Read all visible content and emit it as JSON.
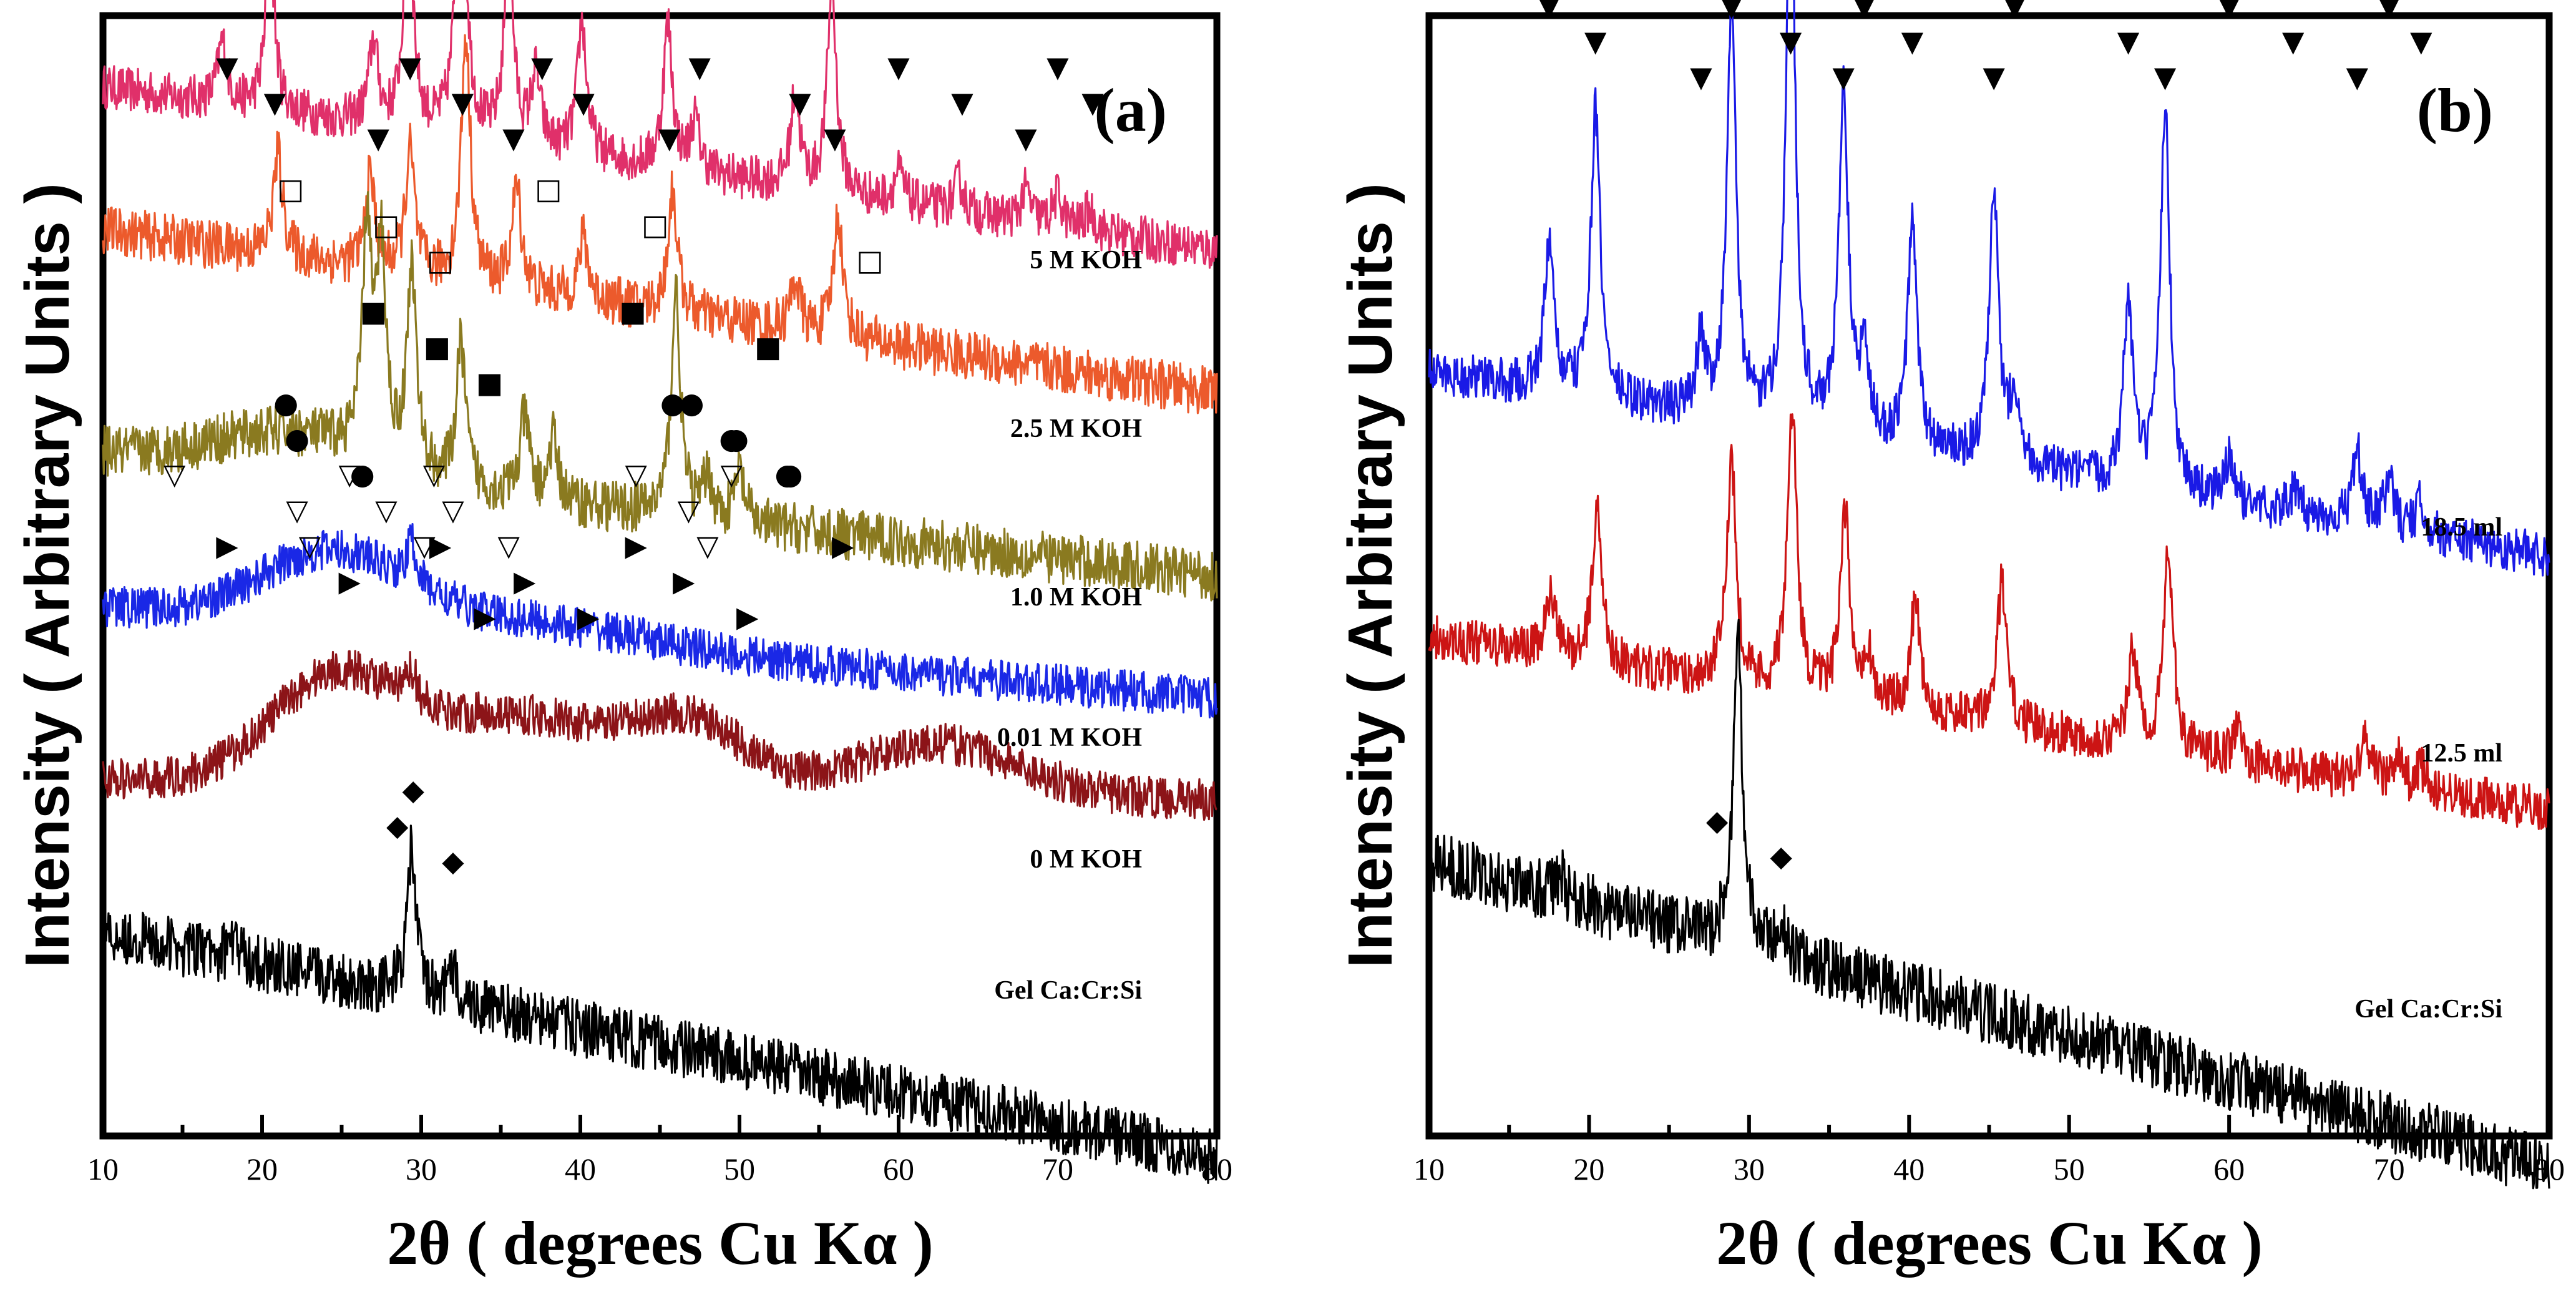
{
  "chart_data": [
    {
      "panel": "(a)",
      "type": "line",
      "xlabel": "2θ ( degrees Cu Kα )",
      "ylabel": "Intensity ( Arbitrary Units )",
      "xlim": [
        10,
        80
      ],
      "xticks": [
        10,
        20,
        30,
        40,
        50,
        60,
        70,
        80
      ],
      "yticks": false,
      "series": [
        {
          "name": "5 M KOH",
          "color": "#e0306a",
          "baseline": 0.88,
          "end": 0.72,
          "noise": 0.022,
          "hump": [],
          "peaks": [
            [
              17.5,
              0.06
            ],
            [
              20.5,
              0.16
            ],
            [
              27,
              0.08
            ],
            [
              29.2,
              0.22
            ],
            [
              32.5,
              0.34
            ],
            [
              35.5,
              0.19
            ],
            [
              37.2,
              0.07
            ],
            [
              40.1,
              0.13
            ],
            [
              45.5,
              0.14
            ],
            [
              47.2,
              0.05
            ],
            [
              53.5,
              0.09
            ],
            [
              55.8,
              0.2
            ],
            [
              60,
              0.03
            ],
            [
              63.8,
              0.03
            ],
            [
              68,
              0.03
            ],
            [
              70,
              0.03
            ],
            [
              72,
              0.02
            ]
          ]
        },
        {
          "name": "2.5 M KOH",
          "color": "#ec5a2c",
          "baseline": 0.74,
          "end": 0.58,
          "noise": 0.024,
          "hump": [],
          "peaks": [
            [
              21,
              0.1
            ],
            [
              26.8,
              0.09
            ],
            [
              29.3,
              0.12
            ],
            [
              32.8,
              0.24
            ],
            [
              36,
              0.1
            ],
            [
              40.2,
              0.06
            ],
            [
              45.8,
              0.12
            ],
            [
              53.5,
              0.05
            ],
            [
              56.2,
              0.12
            ]
          ]
        },
        {
          "name": "1.0 M KOH",
          "color": "#8a7a20",
          "baseline": 0.52,
          "end": 0.4,
          "noise": 0.025,
          "hump": [
            [
              22,
              0.04,
              5
            ]
          ],
          "peaks": [
            [
              26.6,
              0.22
            ],
            [
              27.5,
              0.2
            ],
            [
              29.4,
              0.2
            ],
            [
              32.5,
              0.14
            ],
            [
              36.5,
              0.08
            ],
            [
              38.3,
              0.06
            ],
            [
              46,
              0.22
            ],
            [
              48,
              0.04
            ],
            [
              50,
              0.05
            ]
          ]
        },
        {
          "name": "0.01 M KOH",
          "color": "#1a28e6",
          "baseline": 0.37,
          "end": 0.28,
          "noise": 0.02,
          "hump": [
            [
              24.5,
              0.07,
              4.5
            ],
            [
              37,
              0.02,
              7
            ]
          ],
          "peaks": [
            [
              29.4,
              0.04
            ]
          ]
        },
        {
          "name": "0 M KOH",
          "color": "#8c1418",
          "baseline": 0.2,
          "end": 0.18,
          "noise": 0.02,
          "hump": [
            [
              24.5,
              0.1,
              4
            ],
            [
              36,
              0.07,
              6
            ],
            [
              47,
              0.06,
              3.5
            ],
            [
              62.5,
              0.05,
              5
            ]
          ],
          "peaks": [
            [
              29.4,
              0.03
            ]
          ]
        },
        {
          "name": "Gel Ca:Cr:Si",
          "color": "#000000",
          "baseline": 0.05,
          "end": -0.17,
          "noise": 0.028,
          "hump": [],
          "peaks": [
            [
              29.4,
              0.14
            ],
            [
              32,
              0.03
            ],
            [
              18.2,
              0.02
            ]
          ]
        }
      ],
      "annotations": [
        {
          "symbol": "filled-down-triangle",
          "label": "▼",
          "x": [
            17.8,
            20.8,
            27.3,
            29.3,
            32.6,
            35.8,
            37.6,
            40.2,
            45.6,
            47.5,
            53.8,
            56,
            60,
            64,
            68,
            70,
            72.2
          ]
        },
        {
          "symbol": "open-square",
          "label": "□",
          "x": [
            21.8,
            27.8,
            31.2,
            38,
            44.7,
            58.2
          ]
        },
        {
          "symbol": "filled-square",
          "label": "■",
          "x": [
            27,
            31,
            34.3,
            43.3,
            51.8
          ]
        },
        {
          "symbol": "filled-circle",
          "label": "●",
          "x": [
            21.5,
            22.2,
            26.3,
            47,
            49.8,
            53.2,
            45.8,
            49.5,
            53
          ]
        },
        {
          "symbol": "open-down-triangle",
          "label": "▽",
          "x": [
            14.5,
            22.2,
            23,
            25.5,
            27.8,
            30.2,
            30.8,
            32,
            35.5,
            43.5,
            46.8,
            48,
            49.5
          ]
        },
        {
          "symbol": "filled-right-triangle",
          "label": "▶",
          "x": [
            17.8,
            25.5,
            34,
            31.2,
            36.5,
            40.5,
            43.5,
            46.5,
            50.5,
            56.5
          ]
        },
        {
          "symbol": "filled-diamond",
          "label": "◆",
          "x": [
            29.5,
            28.5,
            32
          ]
        }
      ]
    },
    {
      "panel": "(b)",
      "type": "line",
      "xlabel": "2θ ( degrees Cu Kα )",
      "ylabel": "Intensity ( Arbitrary Units )",
      "xlim": [
        10,
        80
      ],
      "xticks": [
        10,
        20,
        30,
        40,
        50,
        60,
        70,
        80
      ],
      "yticks": false,
      "series": [
        {
          "name": "18.5 ml",
          "color": "#1a1ae6",
          "baseline": 0.6,
          "end": 0.42,
          "noise": 0.022,
          "hump": [],
          "peaks": [
            [
              17.5,
              0.14
            ],
            [
              20.4,
              0.28
            ],
            [
              27,
              0.07
            ],
            [
              28.9,
              0.4
            ],
            [
              32.6,
              0.56
            ],
            [
              35.9,
              0.34
            ],
            [
              37.2,
              0.08
            ],
            [
              40.2,
              0.22
            ],
            [
              45.3,
              0.26
            ],
            [
              46.6,
              0.07
            ],
            [
              53.7,
              0.18
            ],
            [
              56,
              0.38
            ],
            [
              60,
              0.04
            ],
            [
              64,
              0.02
            ],
            [
              68,
              0.07
            ],
            [
              70,
              0.05
            ],
            [
              72,
              0.03
            ]
          ]
        },
        {
          "name": "12.5 ml",
          "color": "#cc1414",
          "baseline": 0.34,
          "end": 0.17,
          "noise": 0.022,
          "hump": [],
          "peaks": [
            [
              17.6,
              0.06
            ],
            [
              20.5,
              0.15
            ],
            [
              28.9,
              0.22
            ],
            [
              32.7,
              0.28
            ],
            [
              36,
              0.18
            ],
            [
              37.4,
              0.05
            ],
            [
              40.4,
              0.11
            ],
            [
              45.8,
              0.14
            ],
            [
              54,
              0.09
            ],
            [
              56.2,
              0.2
            ],
            [
              60.5,
              0.03
            ],
            [
              68.5,
              0.05
            ],
            [
              70.5,
              0.03
            ],
            [
              72,
              0.02
            ]
          ]
        },
        {
          "name": "Gel Ca:Cr:Si",
          "color": "#000000",
          "baseline": 0.12,
          "end": -0.18,
          "noise": 0.03,
          "hump": [],
          "peaks": [
            [
              29.3,
              0.3
            ],
            [
              32,
              0.03
            ],
            [
              18.2,
              0.02
            ]
          ]
        }
      ],
      "annotations": [
        {
          "symbol": "filled-down-triangle",
          "label": "▼",
          "x": [
            17.5,
            20.4,
            27,
            28.9,
            32.6,
            35.9,
            37.2,
            40.2,
            45.3,
            46.6,
            53.7,
            56,
            60,
            64,
            68,
            70,
            72
          ]
        },
        {
          "symbol": "filled-diamond",
          "label": "◆",
          "x": [
            28,
            32
          ]
        }
      ]
    }
  ]
}
